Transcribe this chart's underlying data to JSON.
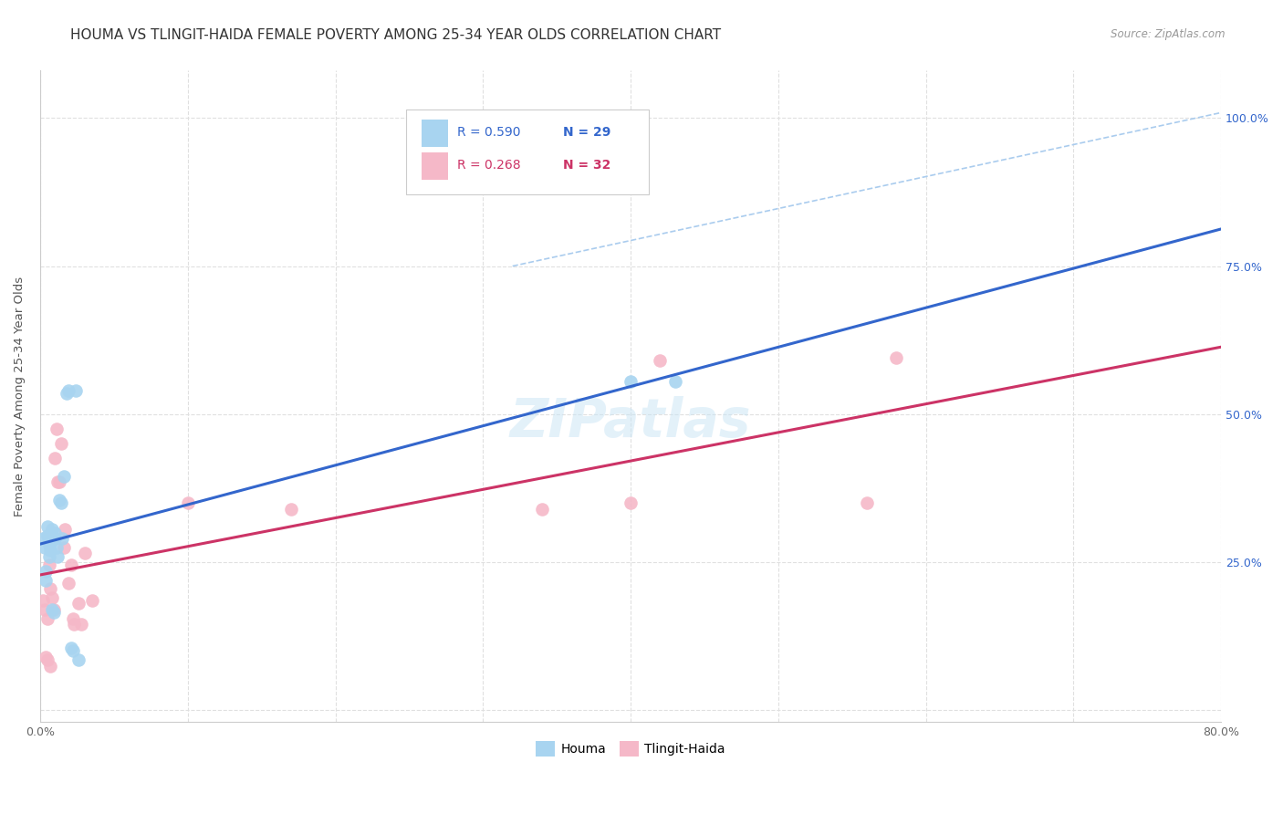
{
  "title": "HOUMA VS TLINGIT-HAIDA FEMALE POVERTY AMONG 25-34 YEAR OLDS CORRELATION CHART",
  "source": "Source: ZipAtlas.com",
  "ylabel": "Female Poverty Among 25-34 Year Olds",
  "xlim": [
    0.0,
    0.8
  ],
  "ylim": [
    -0.02,
    1.08
  ],
  "houma_x": [
    0.002,
    0.003,
    0.004,
    0.004,
    0.005,
    0.005,
    0.006,
    0.006,
    0.007,
    0.007,
    0.008,
    0.008,
    0.009,
    0.01,
    0.01,
    0.011,
    0.012,
    0.013,
    0.014,
    0.015,
    0.016,
    0.018,
    0.019,
    0.021,
    0.022,
    0.024,
    0.026,
    0.4,
    0.43
  ],
  "houma_y": [
    0.29,
    0.275,
    0.235,
    0.22,
    0.31,
    0.295,
    0.28,
    0.26,
    0.29,
    0.27,
    0.305,
    0.17,
    0.165,
    0.3,
    0.29,
    0.275,
    0.26,
    0.355,
    0.35,
    0.29,
    0.395,
    0.535,
    0.54,
    0.105,
    0.1,
    0.54,
    0.085,
    0.555,
    0.555
  ],
  "tlingit_x": [
    0.002,
    0.003,
    0.004,
    0.005,
    0.005,
    0.006,
    0.007,
    0.007,
    0.008,
    0.009,
    0.01,
    0.011,
    0.012,
    0.013,
    0.014,
    0.016,
    0.017,
    0.019,
    0.021,
    0.022,
    0.023,
    0.026,
    0.028,
    0.03,
    0.035,
    0.1,
    0.17,
    0.34,
    0.4,
    0.42,
    0.56,
    0.58
  ],
  "tlingit_y": [
    0.185,
    0.17,
    0.09,
    0.155,
    0.085,
    0.245,
    0.205,
    0.075,
    0.19,
    0.17,
    0.425,
    0.475,
    0.385,
    0.385,
    0.45,
    0.275,
    0.305,
    0.215,
    0.245,
    0.155,
    0.145,
    0.18,
    0.145,
    0.265,
    0.185,
    0.35,
    0.34,
    0.34,
    0.35,
    0.59,
    0.35,
    0.595
  ],
  "houma_R": 0.59,
  "houma_N": 29,
  "tlingit_R": 0.268,
  "tlingit_N": 32,
  "houma_color": "#a8d4f0",
  "tlingit_color": "#f5b8c8",
  "houma_line_color": "#3366cc",
  "tlingit_line_color": "#cc3366",
  "diagonal_color": "#aaccee",
  "grid_color": "#e0e0e0",
  "background_color": "#ffffff",
  "title_fontsize": 11,
  "axis_label_fontsize": 9.5,
  "tick_fontsize": 9,
  "legend_fontsize": 10
}
